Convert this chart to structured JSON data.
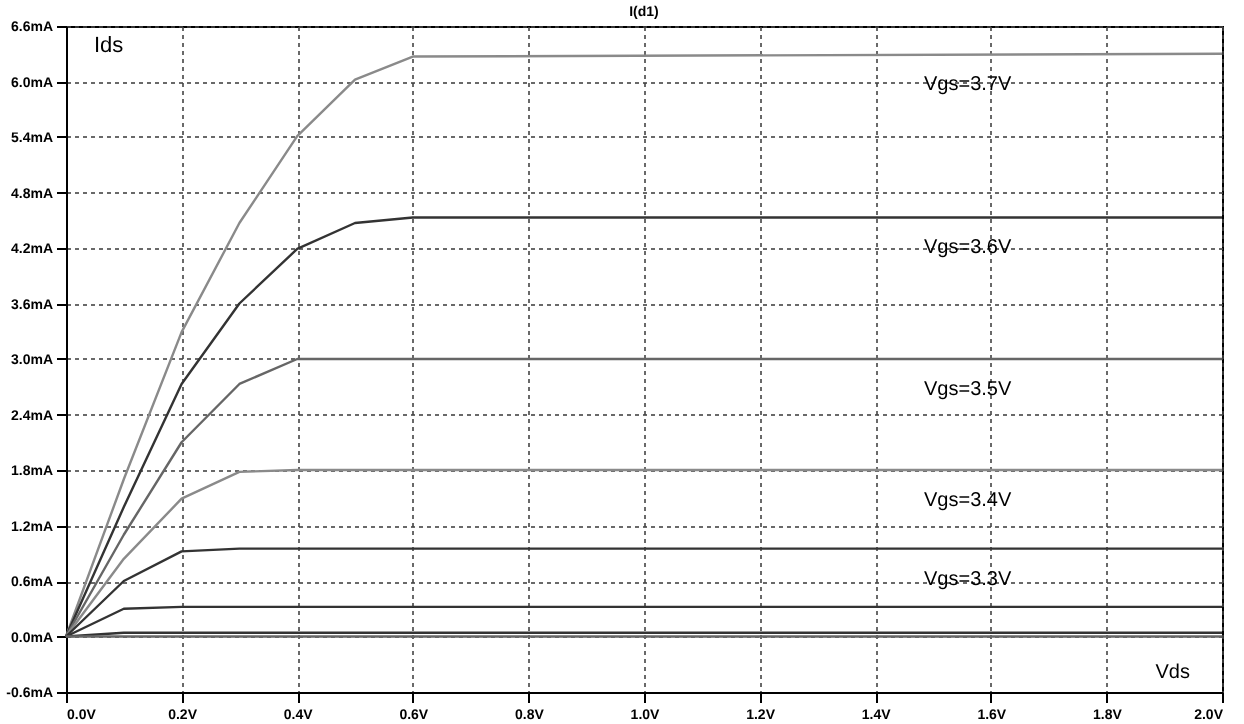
{
  "chart_data": {
    "type": "line",
    "title": "I(d1)",
    "xlabel": "Vds",
    "ylabel": "Ids",
    "x": [
      0,
      0.1,
      0.2,
      0.3,
      0.4,
      0.5,
      0.6,
      2.0
    ],
    "series": [
      {
        "name": "Vgs=3.7V",
        "color": "#8a8a8a",
        "values": [
          0,
          1.7,
          3.29,
          4.47,
          5.41,
          6.02,
          6.27,
          6.3
        ]
      },
      {
        "name": "Vgs=3.6V",
        "color": "#333333",
        "values": [
          0,
          1.4,
          2.73,
          3.6,
          4.19,
          4.47,
          4.53,
          4.53
        ]
      },
      {
        "name": "Vgs=3.5V",
        "color": "#666666",
        "values": [
          0,
          1.1,
          2.1,
          2.73,
          3.0,
          3.0,
          3.0,
          3.0
        ]
      },
      {
        "name": "Vgs=3.4V",
        "color": "#8a8a8a",
        "values": [
          0,
          0.84,
          1.49,
          1.78,
          1.8,
          1.8,
          1.8,
          1.8
        ]
      },
      {
        "name": "Vgs=3.3V",
        "color": "#333333",
        "values": [
          0,
          0.6,
          0.92,
          0.95,
          0.95,
          0.95,
          0.95,
          0.95
        ]
      },
      {
        "color": "#333333",
        "values": [
          0,
          0.3,
          0.32,
          0.32,
          0.32,
          0.32,
          0.32,
          0.32
        ]
      },
      {
        "color": "#333333",
        "values": [
          0,
          0.04,
          0.04,
          0.04,
          0.04,
          0.04,
          0.04,
          0.04
        ]
      },
      {
        "color": "#666666",
        "values": [
          0,
          0,
          0,
          0,
          0,
          0,
          0,
          0
        ]
      }
    ],
    "xlim": [
      0,
      2.0
    ],
    "xticks": [
      {
        "value": 0,
        "label": "0.0V"
      },
      {
        "value": 0.2,
        "label": "0.2V"
      },
      {
        "value": 0.4,
        "label": "0.4V"
      },
      {
        "value": 0.6,
        "label": "0.6V"
      },
      {
        "value": 0.8,
        "label": "0.8V"
      },
      {
        "value": 1.0,
        "label": "1.0V"
      },
      {
        "value": 1.2,
        "label": "1.2V"
      },
      {
        "value": 1.4,
        "label": "1.4V"
      },
      {
        "value": 1.6,
        "label": "1.6V"
      },
      {
        "value": 1.8,
        "label": "1.8V"
      },
      {
        "value": 2.0,
        "label": "2.0V"
      }
    ],
    "ylim": [
      -0.6,
      6.6
    ],
    "yticks": [
      {
        "value": -0.6,
        "label": "-0.6mA"
      },
      {
        "value": 0,
        "label": "0.0mA"
      },
      {
        "value": 0.6,
        "label": "0.6mA"
      },
      {
        "value": 1.2,
        "label": "1.2mA"
      },
      {
        "value": 1.8,
        "label": "1.8mA"
      },
      {
        "value": 2.4,
        "label": "2.4mA"
      },
      {
        "value": 3.0,
        "label": "3.0mA"
      },
      {
        "value": 3.6,
        "label": "3.6mA"
      },
      {
        "value": 4.2,
        "label": "4.2mA"
      },
      {
        "value": 4.8,
        "label": "4.8mA"
      },
      {
        "value": 5.4,
        "label": "5.4mA"
      },
      {
        "value": 6.0,
        "label": "6.0mA"
      },
      {
        "value": 6.6,
        "label": "6.6mA"
      }
    ],
    "grid": true,
    "legend": false,
    "marker": "none",
    "line_style": "solid"
  }
}
